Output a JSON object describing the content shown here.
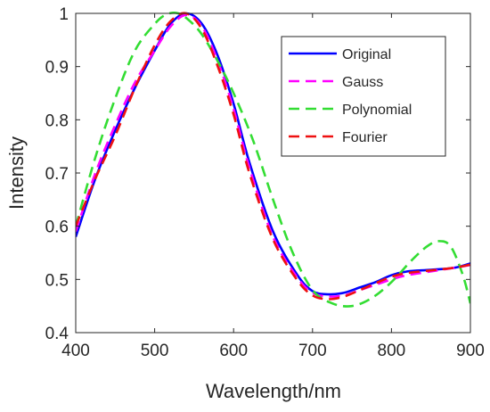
{
  "chart_data": {
    "type": "line",
    "title": "",
    "xlabel": "Wavelength/nm",
    "ylabel": "Intensity",
    "xlim": [
      400,
      900
    ],
    "ylim": [
      0.4,
      1.0
    ],
    "x_ticks": [
      400,
      500,
      600,
      700,
      800,
      900
    ],
    "y_ticks": [
      0.4,
      0.5,
      0.6,
      0.7,
      0.8,
      0.9,
      1.0
    ],
    "x_tick_labels": [
      "400",
      "500",
      "600",
      "700",
      "800",
      "900"
    ],
    "y_tick_labels": [
      "0.4",
      "0.5",
      "0.6",
      "0.7",
      "0.8",
      "0.9",
      "1"
    ],
    "grid": false,
    "legend_position": "top-right",
    "series": [
      {
        "name": "Original",
        "color": "#0000ff",
        "style": "solid",
        "x": [
          400,
          425,
          450,
          475,
          500,
          520,
          540,
          560,
          580,
          600,
          620,
          650,
          680,
          700,
          720,
          740,
          760,
          780,
          800,
          820,
          850,
          880,
          900
        ],
        "y": [
          0.58,
          0.69,
          0.78,
          0.86,
          0.93,
          0.98,
          1.0,
          0.98,
          0.92,
          0.83,
          0.72,
          0.59,
          0.51,
          0.478,
          0.472,
          0.475,
          0.485,
          0.495,
          0.508,
          0.515,
          0.518,
          0.522,
          0.53
        ]
      },
      {
        "name": "Gauss",
        "color": "#ff00ff",
        "style": "dashed",
        "x": [
          400,
          425,
          450,
          475,
          500,
          520,
          540,
          560,
          580,
          600,
          620,
          650,
          680,
          700,
          720,
          740,
          760,
          780,
          800,
          820,
          850,
          880,
          900
        ],
        "y": [
          0.59,
          0.7,
          0.79,
          0.87,
          0.93,
          0.975,
          0.997,
          0.975,
          0.91,
          0.82,
          0.71,
          0.58,
          0.505,
          0.475,
          0.468,
          0.47,
          0.48,
          0.49,
          0.5,
          0.508,
          0.515,
          0.522,
          0.527
        ]
      },
      {
        "name": "Polynomial",
        "color": "#33dd33",
        "style": "dashed",
        "x": [
          400,
          425,
          450,
          475,
          500,
          515,
          530,
          545,
          560,
          580,
          600,
          625,
          650,
          675,
          700,
          725,
          750,
          775,
          800,
          825,
          845,
          860,
          875,
          890,
          900
        ],
        "y": [
          0.6,
          0.73,
          0.84,
          0.93,
          0.98,
          0.998,
          1.0,
          0.985,
          0.96,
          0.91,
          0.85,
          0.76,
          0.65,
          0.55,
          0.48,
          0.455,
          0.45,
          0.465,
          0.495,
          0.535,
          0.562,
          0.572,
          0.562,
          0.51,
          0.455
        ]
      },
      {
        "name": "Fourier",
        "color": "#ee1111",
        "style": "dashed",
        "x": [
          400,
          425,
          450,
          475,
          500,
          520,
          540,
          560,
          580,
          600,
          620,
          650,
          680,
          700,
          720,
          740,
          760,
          780,
          800,
          820,
          850,
          880,
          900
        ],
        "y": [
          0.6,
          0.69,
          0.77,
          0.86,
          0.94,
          0.985,
          1.0,
          0.97,
          0.9,
          0.81,
          0.7,
          0.575,
          0.5,
          0.47,
          0.463,
          0.468,
          0.48,
          0.493,
          0.505,
          0.512,
          0.517,
          0.522,
          0.528
        ]
      }
    ]
  }
}
